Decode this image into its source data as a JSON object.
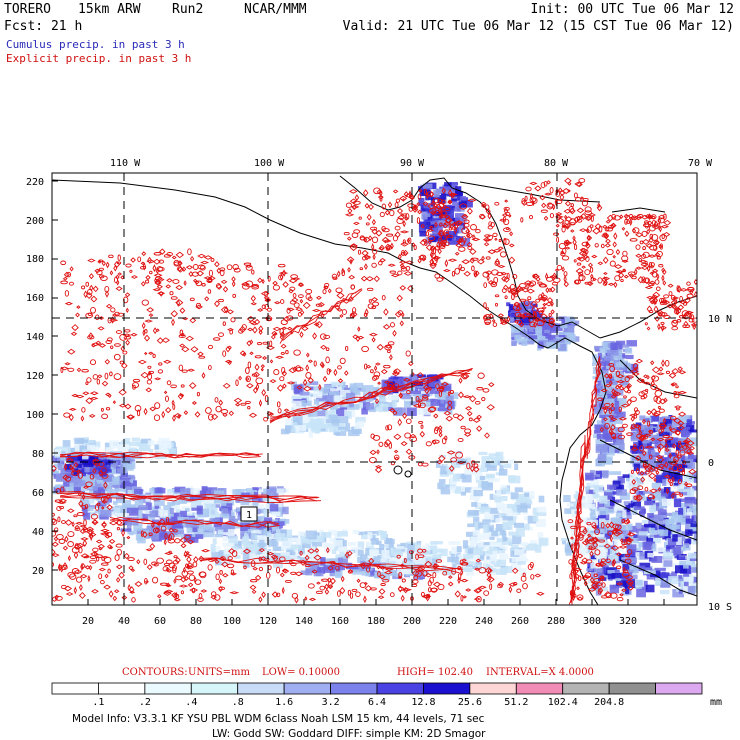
{
  "header": {
    "model": "TORERO",
    "resolution": "15km ARW",
    "run": "Run2",
    "org": "NCAR/MMM",
    "init": "Init: 00 UTC Tue 06 Mar 12",
    "fcst": "Fcst:   21 h",
    "valid": "Valid: 21 UTC Tue 06 Mar 12 (15 CST Tue 06 Mar 12)"
  },
  "legend": {
    "shaded": "Cumulus precip. in past 3 h",
    "contour": "Explicit precip. in past 3 h"
  },
  "map": {
    "top_lon_labels": [
      "110 W",
      "100 W",
      "90 W",
      "80 W",
      "70 W"
    ],
    "right_lat_labels": [
      "10 N",
      "0",
      "10 S"
    ],
    "y_ticks": [
      "220",
      "200",
      "180",
      "160",
      "140",
      "120",
      "100",
      "80",
      "60",
      "40",
      "20"
    ],
    "x_ticks": [
      "20",
      "40",
      "60",
      "80",
      "100",
      "120",
      "140",
      "160",
      "180",
      "200",
      "220",
      "240",
      "260",
      "280",
      "300",
      "320"
    ],
    "box_label": "1",
    "shade_colors": [
      "#e8f4ff",
      "#c8e4f8",
      "#a8c8f0",
      "#8c96e8",
      "#6a64e0",
      "#3c32d8",
      "#1a10c8"
    ],
    "contour_color": "#e01010"
  },
  "contour_info": {
    "contours": "CONTOURS:",
    "units": "UNITS=mm",
    "low": "LOW= 0.10000",
    "high": "HIGH=  102.40",
    "interval": "INTERVAL=X  4.0000"
  },
  "colorbar": {
    "labels": [
      ".1",
      ".2",
      ".4",
      ".8",
      "1.6",
      "3.2",
      "6.4",
      "12.8",
      "25.6",
      "51.2",
      "102.4",
      "204.8"
    ],
    "unit": "mm",
    "colors": [
      "#ffffff",
      "#ffffff",
      "#eafaff",
      "#d6f6fa",
      "#c8dcf8",
      "#a0aef2",
      "#7c82ec",
      "#4a42e2",
      "#1c10d0",
      "#ffd6d6",
      "#f08cb6",
      "#b4b4b4",
      "#909090",
      "#dca8f0"
    ]
  },
  "footer": {
    "line1": "Model Info: V3.3.1   KF     YSU PBL  WDM 6class  Noah LSM  15 km,    44 levels,    71 sec",
    "line2": "LW: Godd SW: Goddard DIFF: simple KM: 2D Smagor"
  }
}
